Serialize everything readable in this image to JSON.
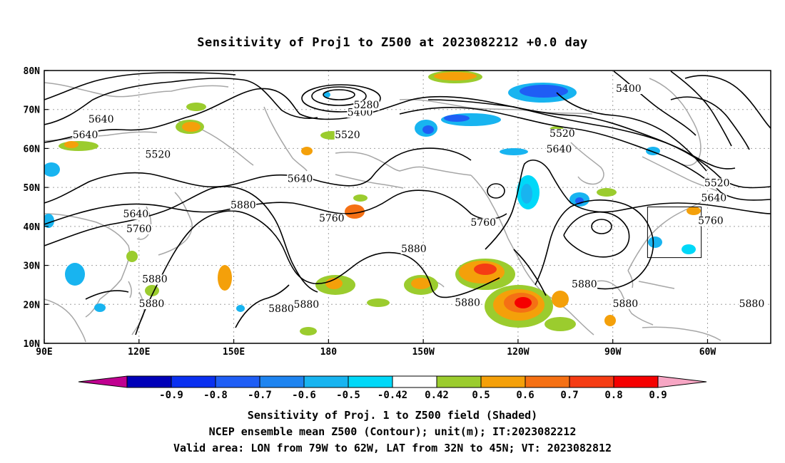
{
  "title": "Sensitivity of Proj1 to Z500 at 2023082212 +0.0 day",
  "map": {
    "lat_labels": [
      "80N",
      "70N",
      "60N",
      "50N",
      "40N",
      "30N",
      "20N",
      "10N"
    ],
    "lon_labels": [
      "90E",
      "120E",
      "150E",
      "180",
      "150W",
      "120W",
      "90W",
      "60W"
    ],
    "grid": "dotted",
    "colors": {
      "coastline": "#a6a6a6",
      "contour": "#000000",
      "grid": "#a0a0a0"
    },
    "contour_labels": [
      {
        "text": "5640",
        "lon": 108,
        "lat": 66.8
      },
      {
        "text": "5640",
        "lon": 103,
        "lat": 62.8
      },
      {
        "text": "5520",
        "lon": 126,
        "lat": 57.8
      },
      {
        "text": "5640",
        "lon": 119,
        "lat": 42.5
      },
      {
        "text": "5760",
        "lon": 120,
        "lat": 38.7
      },
      {
        "text": "5880",
        "lon": 153,
        "lat": 44.8
      },
      {
        "text": "5880",
        "lon": 125,
        "lat": 25.8
      },
      {
        "text": "5880",
        "lon": 124,
        "lat": 19.5
      },
      {
        "text": "5880",
        "lon": 165,
        "lat": 18.2
      },
      {
        "text": "5880",
        "lon": 173,
        "lat": 19.3
      },
      {
        "text": "5640",
        "lon": 171,
        "lat": 51.6
      },
      {
        "text": "5760",
        "lon": 181,
        "lat": 41.4
      },
      {
        "text": "5520",
        "lon": 186,
        "lat": 62.8
      },
      {
        "text": "5400",
        "lon": 190,
        "lat": 68.6
      },
      {
        "text": "5280",
        "lon": 192,
        "lat": 70.5
      },
      {
        "text": "5880",
        "lon": 207,
        "lat": 33.6
      },
      {
        "text": "5880",
        "lon": 224,
        "lat": 19.8
      },
      {
        "text": "5760",
        "lon": 229,
        "lat": 40.3
      },
      {
        "text": "5520",
        "lon": 254,
        "lat": 63.2
      },
      {
        "text": "5640",
        "lon": 253,
        "lat": 59.2
      },
      {
        "text": "5400",
        "lon": 275,
        "lat": 74.7
      },
      {
        "text": "5880",
        "lon": 261,
        "lat": 24.5
      },
      {
        "text": "5880",
        "lon": 274,
        "lat": 19.5
      },
      {
        "text": "5520",
        "lon": 303,
        "lat": 50.5
      },
      {
        "text": "5640",
        "lon": 302,
        "lat": 46.6
      },
      {
        "text": "5760",
        "lon": 301,
        "lat": 40.8
      },
      {
        "text": "5880",
        "lon": 314,
        "lat": 19.5
      }
    ],
    "valid_box": {
      "lon_min": 281,
      "lon_max": 298,
      "lat_min": 32,
      "lat_max": 45
    }
  },
  "colorbar": {
    "labels": [
      "-0.9",
      "-0.8",
      "-0.7",
      "-0.6",
      "-0.5",
      "-0.42",
      "0.42",
      "0.5",
      "0.6",
      "0.7",
      "0.8",
      "0.9"
    ],
    "colors": [
      "#c00090",
      "#0000b8",
      "#0a30f0",
      "#1f5ef5",
      "#1e84f0",
      "#18b4f0",
      "#00d8f8",
      "#ffffff",
      "#9bcc2e",
      "#f4a00a",
      "#f57014",
      "#f53c14",
      "#f50000",
      "#f7a6c4"
    ]
  },
  "footer": {
    "line1": "Sensitivity of Proj. 1 to Z500 field (Shaded)",
    "line2": "NCEP ensemble mean Z500 (Contour); unit(m); IT:2023082212",
    "line3": "Valid area: LON from 79W to 62W, LAT from 32N to 45N; VT: 2023082812"
  }
}
